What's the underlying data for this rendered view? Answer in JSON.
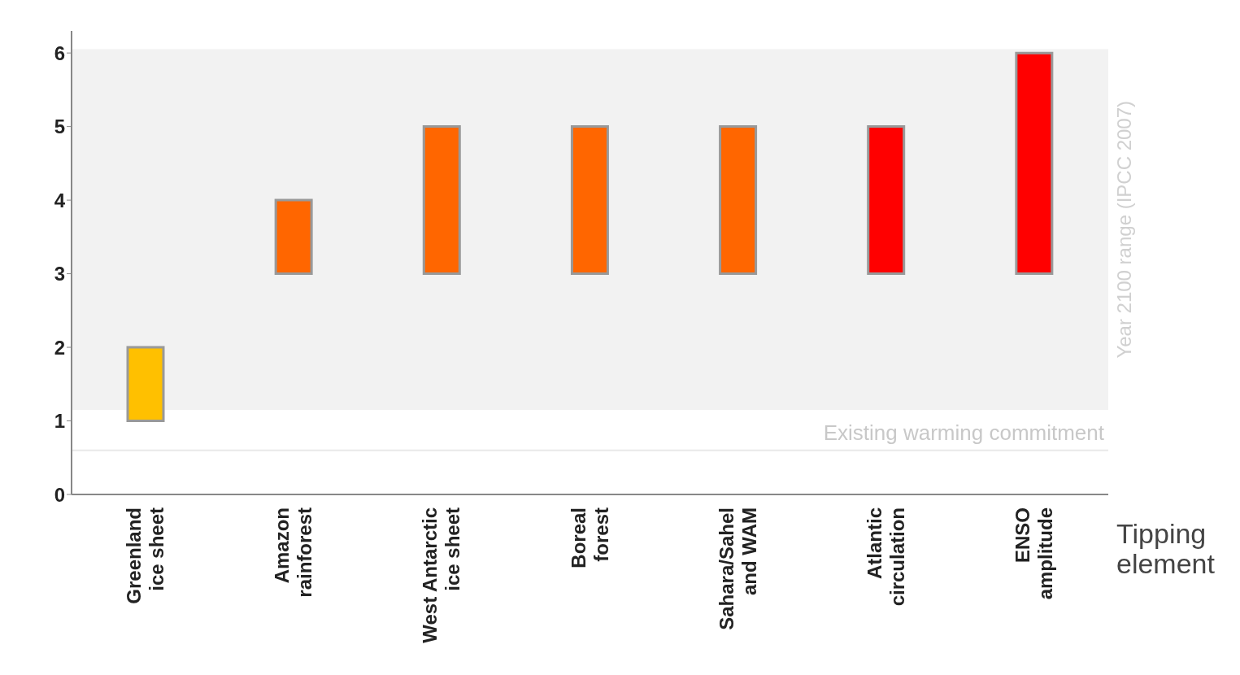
{
  "chart_data": {
    "type": "bar",
    "xlabel": "Tipping element",
    "categories": [
      "Greenland\nice sheet",
      "Amazon\nrainforest",
      "West Antarctic\nice sheet",
      "Boreal\nforest",
      "Sahara/Sahel\nand WAM",
      "Atlantic\ncirculation",
      "ENSO\namplitude"
    ],
    "base": [
      1,
      3,
      3,
      3,
      3,
      3,
      3
    ],
    "values": [
      1,
      1,
      2,
      2,
      2,
      2,
      3
    ],
    "colors": [
      "#ffc000",
      "#ff6600",
      "#ff6600",
      "#ff6600",
      "#ff6600",
      "#ff0000",
      "#ff0000"
    ],
    "ylim": [
      0,
      6.3
    ],
    "yticks": [
      0,
      1,
      2,
      3,
      4,
      5,
      6
    ],
    "bands": [
      {
        "axis": "y",
        "from": 1.15,
        "to": 6.05,
        "label": "Year 2100 range (IPCC 2007)",
        "color": "#f2f2f2"
      }
    ],
    "ref_lines": [
      {
        "axis": "y",
        "value": 0.6,
        "label": "Existing warming commitment",
        "color": "#e8e8e8"
      }
    ],
    "ylabel": null
  }
}
